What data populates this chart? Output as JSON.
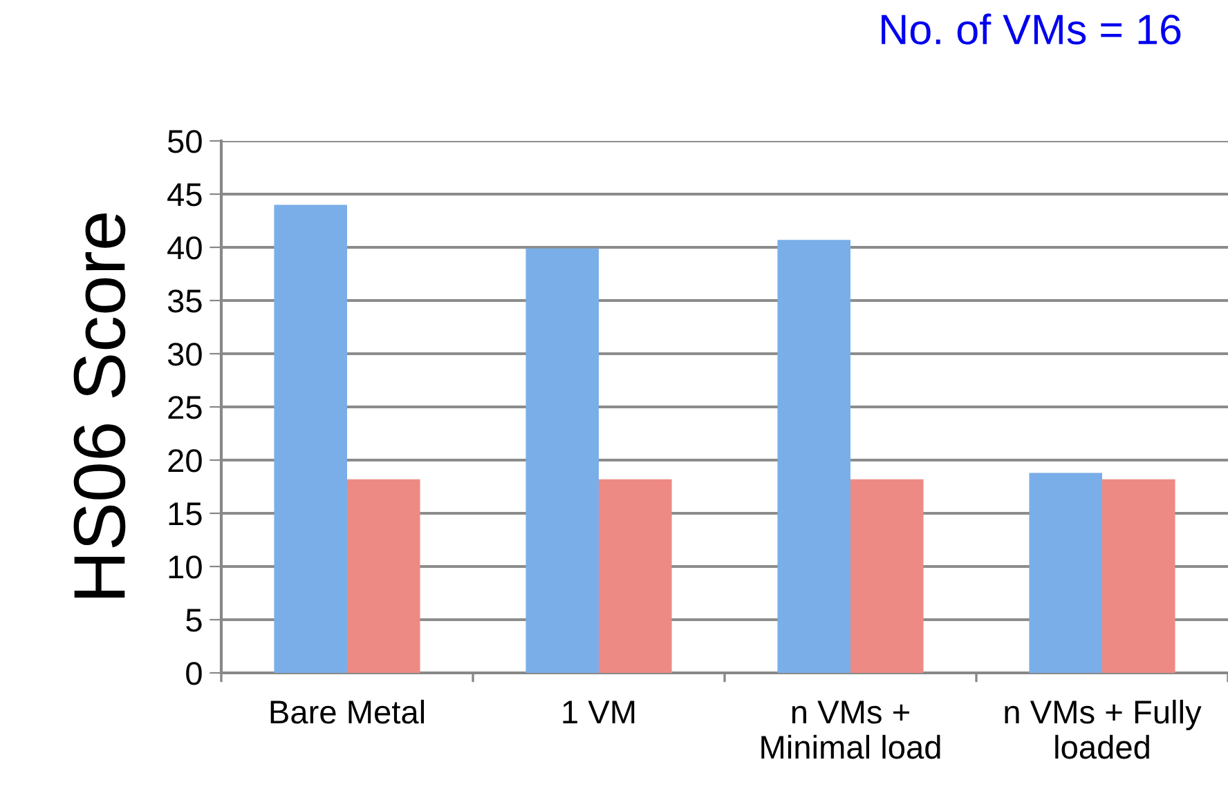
{
  "chart_data": {
    "type": "bar",
    "title": "No. of VMs = 16",
    "ylabel": "HS06 Score",
    "categories": [
      "Bare Metal",
      "1 VM",
      "n VMs +\nMinimal load",
      "n VMs + Fully\nloaded"
    ],
    "series": [
      {
        "color": "#7aaee8",
        "values": [
          44.0,
          39.9,
          40.7,
          18.8
        ]
      },
      {
        "color": "#ee8a84",
        "values": [
          18.2,
          18.2,
          18.2,
          18.2
        ]
      }
    ],
    "ylim": [
      0,
      50
    ],
    "yticks": [
      0,
      5,
      10,
      15,
      20,
      25,
      30,
      35,
      40,
      45,
      50
    ],
    "grid": "y"
  }
}
